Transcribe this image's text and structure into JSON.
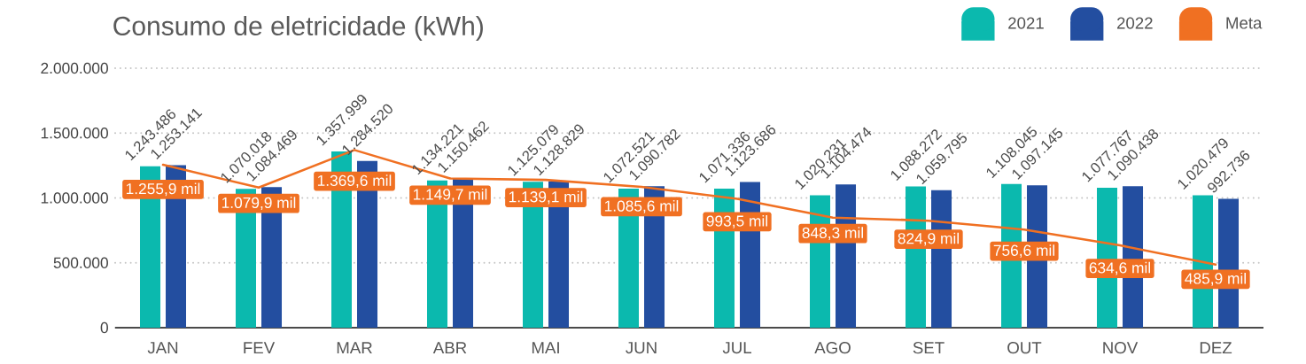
{
  "chart_data": {
    "type": "bar",
    "title": "Consumo de eletricidade (kWh)",
    "categories": [
      "JAN",
      "FEV",
      "MAR",
      "ABR",
      "MAI",
      "JUN",
      "JUL",
      "AGO",
      "SET",
      "OUT",
      "NOV",
      "DEZ"
    ],
    "series": [
      {
        "name": "2021",
        "color": "#0bb9ae",
        "values": [
          1243486,
          1070018,
          1357999,
          1134221,
          1125079,
          1072521,
          1071336,
          1020231,
          1088272,
          1108045,
          1077767,
          1020479
        ],
        "value_labels": [
          "1.243.486",
          "1.070.018",
          "1.357.999",
          "1.134.221",
          "1.125.079",
          "1.072.521",
          "1.071.336",
          "1.020.231",
          "1.088.272",
          "1.108.045",
          "1.077.767",
          "1.020.479"
        ]
      },
      {
        "name": "2022",
        "color": "#234ea0",
        "values": [
          1253141,
          1084469,
          1284520,
          1150462,
          1128829,
          1090782,
          1123686,
          1104474,
          1059795,
          1097145,
          1090438,
          992736
        ],
        "value_labels": [
          "1.253.141",
          "1.084.469",
          "1.284.520",
          "1.150.462",
          "1.128.829",
          "1.090.782",
          "1.123.686",
          "1.104.474",
          "1.059.795",
          "1.097.145",
          "1.090.438",
          "992.736"
        ]
      },
      {
        "name": "Meta",
        "type": "line",
        "color": "#f07022",
        "values": [
          1255900,
          1079900,
          1369600,
          1149700,
          1139100,
          1085600,
          993500,
          848300,
          824900,
          756600,
          634600,
          485900
        ]
      }
    ],
    "annotations": [
      {
        "text": "1.255,9 mil",
        "x": "JAN",
        "y": 1255900
      },
      {
        "text": "1.079,9 mil",
        "x": "FEV",
        "y": 1079900
      },
      {
        "text": "1.369,6 mil",
        "x": "MAR",
        "y": 1369600
      },
      {
        "text": "1.149,7 mil",
        "x": "ABR",
        "y": 1149700
      },
      {
        "text": "1.139,1 mil",
        "x": "MAI",
        "y": 1139100
      },
      {
        "text": "1.085,6 mil",
        "x": "JUN",
        "y": 1085600
      },
      {
        "text": "993,5 mil",
        "x": "JUL",
        "y": 993500
      },
      {
        "text": "848,3 mil",
        "x": "AGO",
        "y": 848300
      },
      {
        "text": "824,9 mil",
        "x": "SET",
        "y": 824900
      },
      {
        "text": "756,6 mil",
        "x": "OUT",
        "y": 756600
      },
      {
        "text": "634,6 mil",
        "x": "NOV",
        "y": 634600
      },
      {
        "text": "485,9 mil",
        "x": "DEZ",
        "y": 485900
      }
    ],
    "ylim": [
      0,
      2000000
    ],
    "yticks": [
      0,
      {
        "value": 500000,
        "label": "500.000"
      },
      {
        "value": 1000000,
        "label": "1.000.000"
      },
      {
        "value": 1500000,
        "label": "1.500.000"
      },
      {
        "value": 2000000,
        "label": "2.000.000"
      }
    ],
    "grid": "y",
    "legend": "top right"
  }
}
